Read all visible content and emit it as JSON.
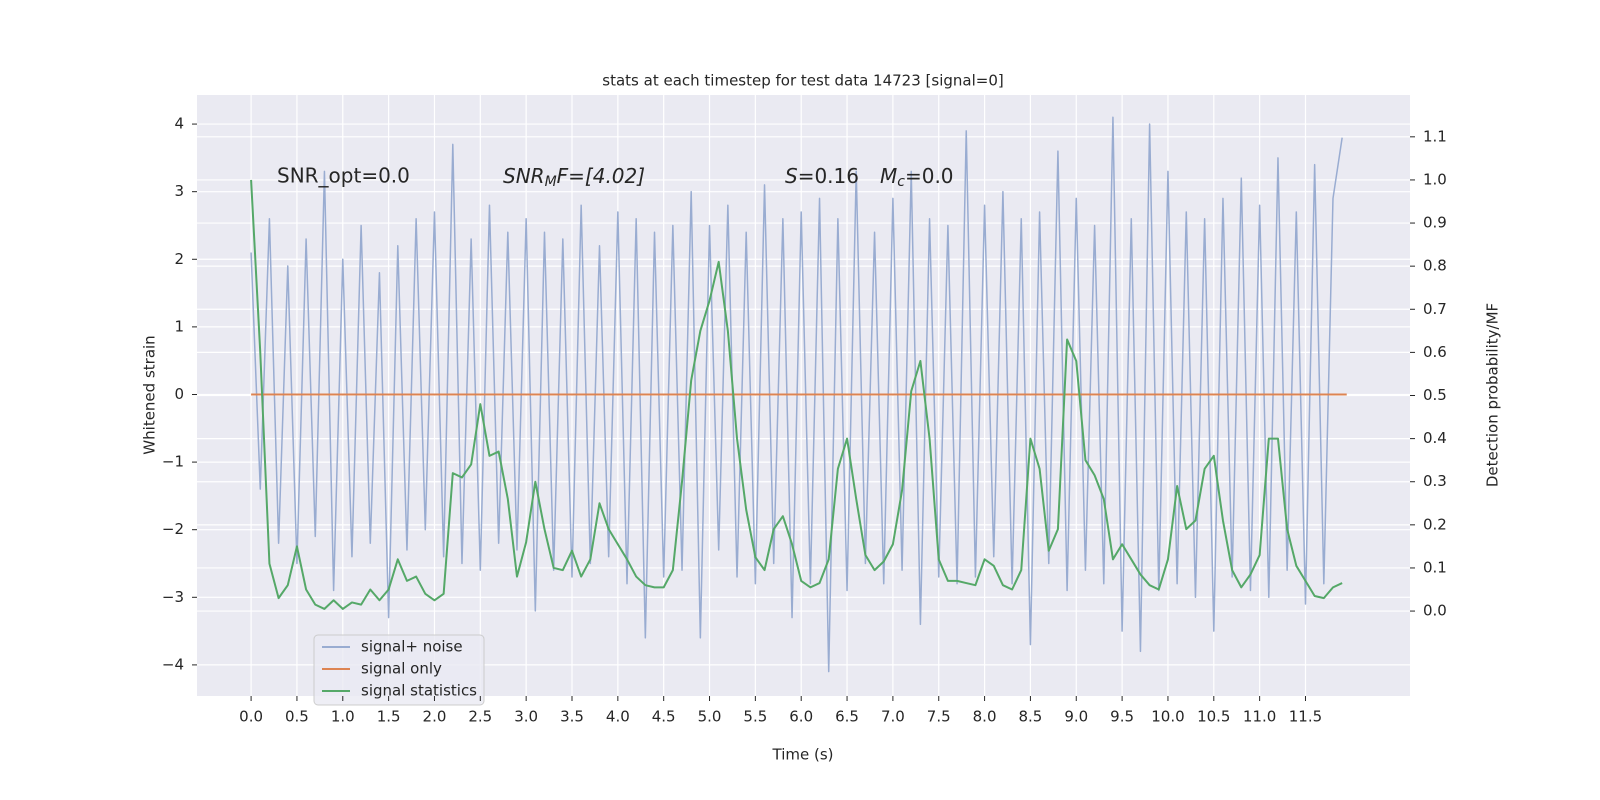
{
  "chart_data": {
    "type": "line",
    "title": "stats at each timestep for test data 14723 [signal=0]",
    "x_label": "Time (s)",
    "y_label": "Whitened strain",
    "y2_label": "Detection probability/MF",
    "annotations": [
      {
        "parts": [
          "SNR_opt=0.0"
        ]
      },
      {
        "parts": [
          "SNR",
          "M",
          "F=[4.02]"
        ]
      },
      {
        "parts": [
          "S",
          "=0.16"
        ]
      },
      {
        "parts": [
          "M",
          "c",
          "=0.0"
        ]
      }
    ],
    "grid": true,
    "legend": "lower left",
    "xlim": [
      -0.59,
      12.64
    ],
    "ylim": [
      -4.46,
      4.43
    ],
    "y2lim": [
      -0.197,
      1.197
    ],
    "xticks": [
      {
        "value": 0,
        "label": "0.0"
      },
      0.5,
      {
        "value": 1,
        "label": "1.0"
      },
      1.5,
      {
        "value": 2,
        "label": "2.0"
      },
      2.5,
      {
        "value": 3,
        "label": "3.0"
      },
      3.5,
      {
        "value": 4,
        "label": "4.0"
      },
      4.5,
      {
        "value": 5,
        "label": "5.0"
      },
      5.5,
      {
        "value": 6,
        "label": "6.0"
      },
      6.5,
      {
        "value": 7,
        "label": "7.0"
      },
      7.5,
      {
        "value": 8,
        "label": "8.0"
      },
      8.5,
      {
        "value": 9,
        "label": "9.0"
      },
      9.5,
      {
        "value": 10,
        "label": "10.0"
      },
      10.5,
      {
        "value": 11,
        "label": "11.0"
      },
      11.5
    ],
    "yticks": [
      {
        "value": -4,
        "label": "−4"
      },
      {
        "value": -3,
        "label": "−3"
      },
      {
        "value": -2,
        "label": "−2"
      },
      {
        "value": -1,
        "label": "−1"
      },
      0,
      1,
      2,
      3,
      4
    ],
    "y2ticks": [
      {
        "value": 0,
        "label": "0.0"
      },
      0.1,
      0.2,
      0.3,
      0.4,
      0.5,
      0.6,
      0.7,
      0.8,
      0.9,
      {
        "value": 1,
        "label": "1.0"
      },
      1.1
    ],
    "x": [
      0,
      0.1,
      0.2,
      0.3,
      0.4,
      0.5,
      0.6,
      0.7,
      0.8,
      0.9,
      1,
      1.1,
      1.2,
      1.3,
      1.4,
      1.5,
      1.6,
      1.7,
      1.8,
      1.9,
      2,
      2.1,
      2.2,
      2.3,
      2.4,
      2.5,
      2.6,
      2.7,
      2.8,
      2.9,
      3,
      3.1,
      3.2,
      3.3,
      3.4,
      3.5,
      3.6,
      3.7,
      3.8,
      3.9,
      4,
      4.1,
      4.2,
      4.3,
      4.4,
      4.5,
      4.6,
      4.7,
      4.8,
      4.9,
      5,
      5.1,
      5.2,
      5.3,
      5.4,
      5.5,
      5.6,
      5.7,
      5.8,
      5.9,
      6,
      6.1,
      6.2,
      6.3,
      6.4,
      6.5,
      6.6,
      6.7,
      6.8,
      6.9,
      7,
      7.1,
      7.2,
      7.3,
      7.4,
      7.5,
      7.6,
      7.7,
      7.8,
      7.9,
      8,
      8.1,
      8.2,
      8.3,
      8.4,
      8.5,
      8.6,
      8.7,
      8.8,
      8.9,
      9,
      9.1,
      9.2,
      9.3,
      9.4,
      9.5,
      9.6,
      9.7,
      9.8,
      9.9,
      10,
      10.1,
      10.2,
      10.3,
      10.4,
      10.5,
      10.6,
      10.7,
      10.8,
      10.9,
      11,
      11.1,
      11.2,
      11.3,
      11.4,
      11.5,
      11.6,
      11.7,
      11.8,
      11.9
    ],
    "series": [
      {
        "name": "signal+ noise",
        "color": "#99acd1",
        "values": [
          2.1,
          -1.4,
          2.6,
          -2.2,
          1.9,
          -2.5,
          2.3,
          -2.1,
          3.3,
          -2.9,
          2.0,
          -2.4,
          2.5,
          -2.2,
          1.8,
          -3.3,
          2.2,
          -2.3,
          2.6,
          -2.0,
          2.7,
          -2.4,
          3.7,
          -2.5,
          2.3,
          -2.6,
          2.8,
          -2.2,
          2.4,
          -2.3,
          2.6,
          -3.2,
          2.4,
          -2.6,
          2.3,
          -2.7,
          2.8,
          -2.5,
          2.2,
          -2.4,
          2.7,
          -2.8,
          2.6,
          -3.6,
          2.4,
          -2.7,
          2.5,
          -2.6,
          3.0,
          -3.6,
          2.5,
          -2.3,
          2.8,
          -2.7,
          2.4,
          -2.8,
          3.1,
          -2.5,
          2.6,
          -3.3,
          2.7,
          -2.8,
          2.9,
          -4.1,
          2.6,
          -2.9,
          3.3,
          -2.5,
          2.4,
          -2.8,
          2.9,
          -2.6,
          3.3,
          -3.4,
          2.6,
          -2.7,
          2.5,
          -2.8,
          3.9,
          -2.7,
          2.8,
          -2.4,
          3.0,
          -2.8,
          2.6,
          -3.7,
          2.7,
          -2.5,
          3.6,
          -2.9,
          2.9,
          -2.6,
          2.5,
          -2.8,
          4.1,
          -3.5,
          2.6,
          -3.8,
          4.0,
          -2.9,
          3.3,
          -2.8,
          2.7,
          -3.0,
          2.6,
          -3.5,
          2.9,
          -2.7,
          3.2,
          -2.9,
          2.8,
          -3.0,
          3.5,
          -2.6,
          2.7,
          -3.1,
          3.4,
          -2.8,
          2.9,
          3.8
        ]
      },
      {
        "name": "signal only",
        "color": "#dd8452",
        "x": [
          0,
          11.95
        ],
        "values": [
          0,
          0
        ]
      },
      {
        "name": "signal statistics",
        "color": "#55a868",
        "axis": "y2",
        "values": [
          1.0,
          0.6,
          0.11,
          0.03,
          0.06,
          0.15,
          0.05,
          0.015,
          0.005,
          0.025,
          0.005,
          0.02,
          0.015,
          0.05,
          0.025,
          0.05,
          0.12,
          0.07,
          0.08,
          0.04,
          0.025,
          0.04,
          0.32,
          0.31,
          0.34,
          0.48,
          0.36,
          0.37,
          0.26,
          0.08,
          0.16,
          0.3,
          0.19,
          0.1,
          0.095,
          0.14,
          0.08,
          0.12,
          0.25,
          0.19,
          0.155,
          0.12,
          0.08,
          0.06,
          0.055,
          0.055,
          0.095,
          0.3,
          0.535,
          0.65,
          0.72,
          0.81,
          0.65,
          0.4,
          0.235,
          0.125,
          0.095,
          0.19,
          0.22,
          0.155,
          0.07,
          0.055,
          0.065,
          0.12,
          0.33,
          0.4,
          0.26,
          0.13,
          0.095,
          0.115,
          0.155,
          0.28,
          0.51,
          0.58,
          0.4,
          0.12,
          0.07,
          0.07,
          0.065,
          0.06,
          0.12,
          0.105,
          0.06,
          0.05,
          0.095,
          0.4,
          0.33,
          0.14,
          0.19,
          0.63,
          0.58,
          0.35,
          0.315,
          0.26,
          0.12,
          0.155,
          0.12,
          0.085,
          0.06,
          0.05,
          0.12,
          0.29,
          0.19,
          0.21,
          0.33,
          0.36,
          0.21,
          0.095,
          0.055,
          0.085,
          0.13,
          0.4,
          0.4,
          0.19,
          0.105,
          0.07,
          0.035,
          0.03,
          0.055,
          0.065
        ]
      }
    ]
  }
}
